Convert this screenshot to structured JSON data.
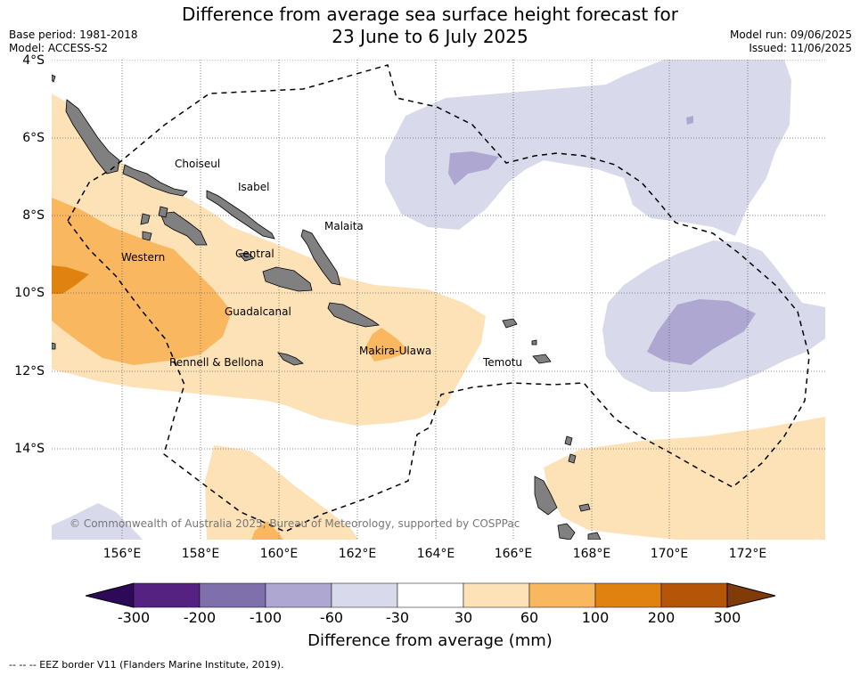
{
  "title": {
    "line1": "Difference from average sea surface height forecast for",
    "line2": "23 June to 6 July 2025"
  },
  "meta_left": {
    "base_period": "Base period: 1981-2018",
    "model": "Model: ACCESS-S2"
  },
  "meta_right": {
    "model_run": "Model run: 09/06/2025",
    "issued": "Issued: 11/06/2025"
  },
  "axes": {
    "lat_labels": [
      "4°S",
      "6°S",
      "8°S",
      "10°S",
      "12°S",
      "14°S"
    ],
    "lon_labels": [
      "156°E",
      "158°E",
      "160°E",
      "162°E",
      "164°E",
      "166°E",
      "168°E",
      "170°E",
      "172°E"
    ],
    "lon_range": [
      154.5,
      174.2
    ],
    "lat_range": [
      -4,
      -16.4
    ],
    "grid": "dotted"
  },
  "places": [
    "Choiseul",
    "Isabel",
    "Malaita",
    "Western",
    "Central",
    "Guadalcanal",
    "Makira-Ulawa",
    "Rennell & Bellona",
    "Temotu"
  ],
  "copyright": "© Commonwealth of Australia 2025, Bureau of Meteorology, supported by COSPPac",
  "colorbar": {
    "ticks": [
      "-300",
      "-200",
      "-100",
      "-60",
      "-30",
      "30",
      "60",
      "100",
      "200",
      "300"
    ],
    "colors": [
      "#2d0a57",
      "#552282",
      "#7f6faa",
      "#aea7d1",
      "#d8d9ea",
      "#ffffff",
      "#fde1b7",
      "#f9b760",
      "#e0820f",
      "#b45507",
      "#7f3b08"
    ],
    "label": "Difference from average (mm)"
  },
  "legend_note": "--  --  -- EEZ border V11 (Flanders Marine Institute, 2019)."
}
